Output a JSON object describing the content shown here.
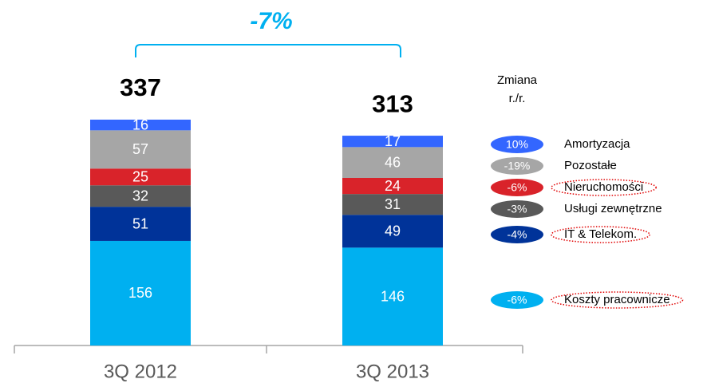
{
  "chart_data": {
    "type": "stacked_bar",
    "categories": [
      "3Q 2012",
      "3Q 2013"
    ],
    "totals": [
      337,
      313
    ],
    "annotation": "-7%",
    "legend_title": [
      "Zmiana",
      "r./r."
    ],
    "series": [
      {
        "name": "Koszty pracownicze",
        "color": "#00b0f0",
        "values": [
          156,
          146
        ],
        "change": -6,
        "change_label": "-6%",
        "highlight": true
      },
      {
        "name": "IT & Telekom.",
        "color": "#003399",
        "values": [
          51,
          49
        ],
        "change": -4,
        "change_label": "-4%",
        "highlight": true
      },
      {
        "name": "Usługi zewnętrzne",
        "color": "#595959",
        "values": [
          32,
          31
        ],
        "change": -3,
        "change_label": "-3%",
        "highlight": false
      },
      {
        "name": "Nieruchomości",
        "color": "#d9232a",
        "values": [
          25,
          24
        ],
        "change": -6,
        "change_label": "-6%",
        "highlight": true
      },
      {
        "name": "Pozostałe",
        "color": "#a6a6a6",
        "values": [
          57,
          46
        ],
        "change": -19,
        "change_label": "-19%",
        "highlight": false
      },
      {
        "name": "Amortyzacja",
        "color": "#3366ff",
        "values": [
          16,
          17
        ],
        "change": 10,
        "change_label": "10%",
        "highlight": false
      }
    ]
  }
}
